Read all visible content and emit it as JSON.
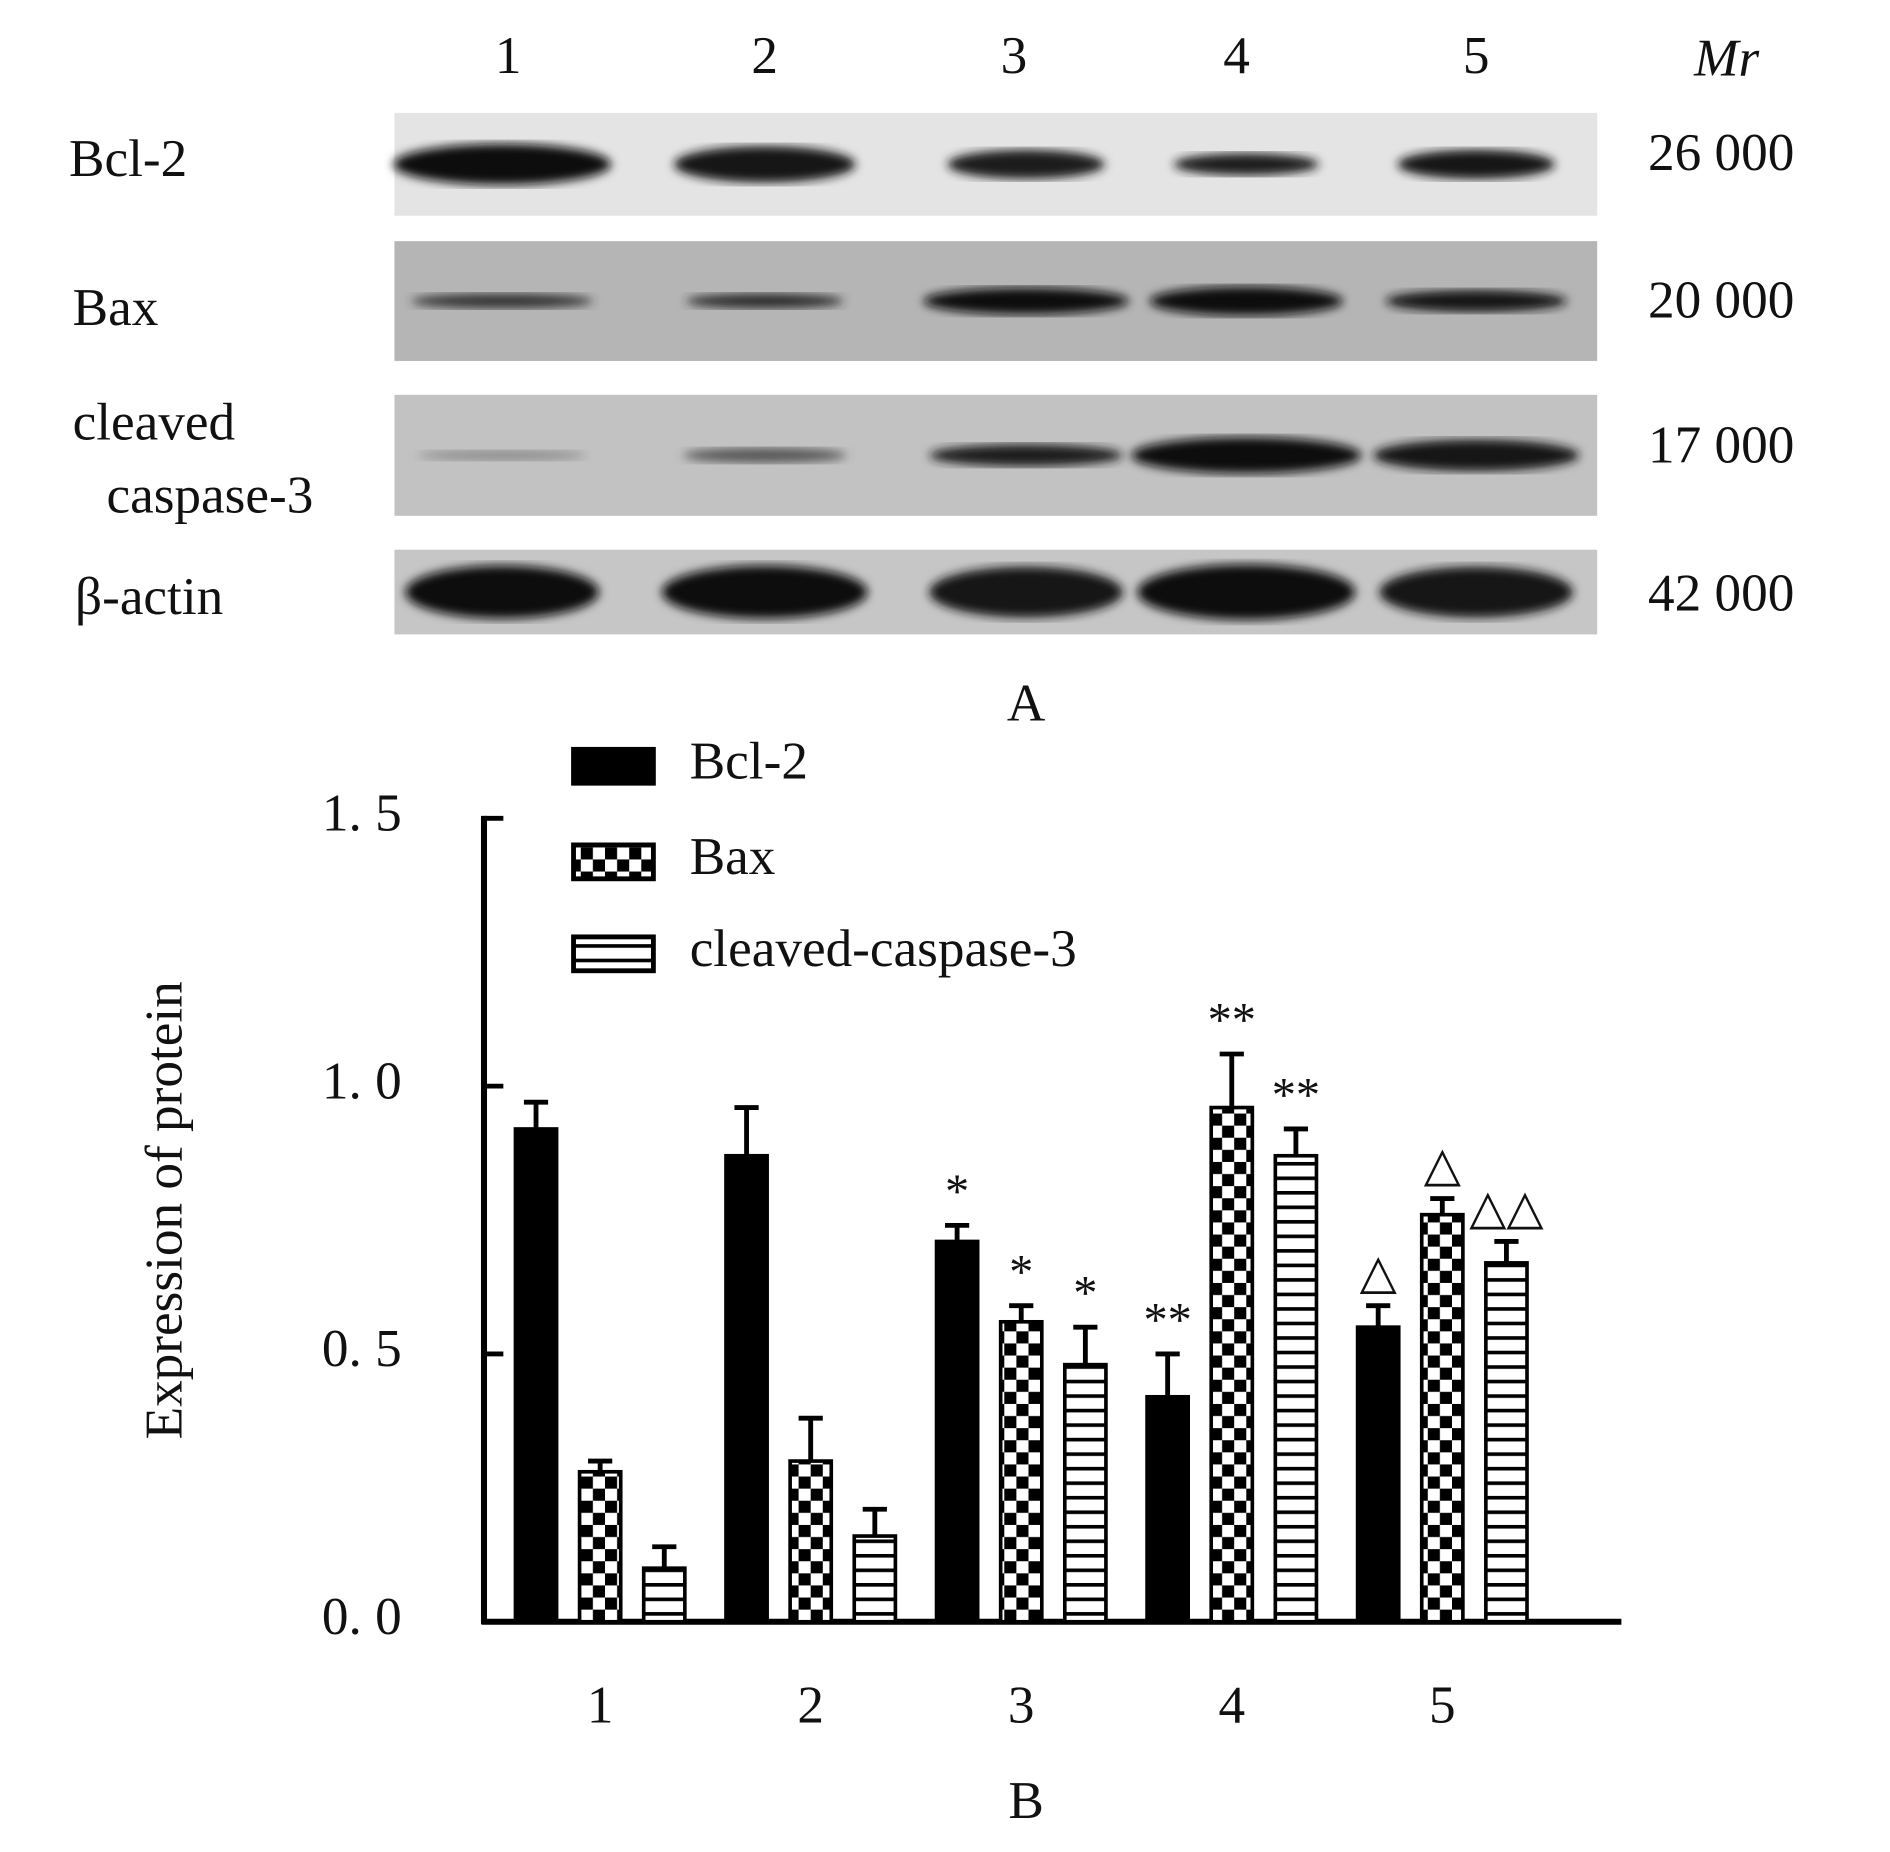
{
  "blot": {
    "lanes": [
      "1",
      "2",
      "3",
      "4",
      "5"
    ],
    "mr_label": "Mr",
    "rows": [
      {
        "protein": [
          "Bcl-2"
        ],
        "mr": "26 000"
      },
      {
        "protein": [
          "Bax"
        ],
        "mr": "20 000"
      },
      {
        "protein": [
          "cleaved",
          "caspase-3"
        ],
        "mr": "17 000"
      },
      {
        "protein": [
          "β-actin"
        ],
        "mr": "42 000"
      }
    ],
    "panel_label": "A"
  },
  "chart_data": {
    "type": "bar",
    "ylabel": "Expression of protein",
    "categories": [
      "1",
      "2",
      "3",
      "4",
      "5"
    ],
    "series": [
      {
        "name": "Bcl-2",
        "color": "#000000",
        "pattern": "solid",
        "values": [
          0.92,
          0.87,
          0.71,
          0.42,
          0.55
        ],
        "errors": [
          0.05,
          0.09,
          0.03,
          0.08,
          0.04
        ],
        "annotations": [
          null,
          null,
          "*",
          "**",
          "△"
        ]
      },
      {
        "name": "Bax",
        "color": "#000000",
        "pattern": "checker",
        "values": [
          0.28,
          0.3,
          0.56,
          0.96,
          0.76
        ],
        "errors": [
          0.02,
          0.08,
          0.03,
          0.1,
          0.03
        ],
        "annotations": [
          null,
          null,
          "*",
          "**",
          "△"
        ]
      },
      {
        "name": "cleaved-caspase-3",
        "color": "#000000",
        "pattern": "hlines",
        "values": [
          0.1,
          0.16,
          0.48,
          0.87,
          0.67
        ],
        "errors": [
          0.04,
          0.05,
          0.07,
          0.05,
          0.04
        ],
        "annotations": [
          null,
          null,
          "*",
          "**",
          "△△"
        ]
      }
    ],
    "ylim": [
      0,
      1.5
    ],
    "yticks": [
      {
        "value": 0,
        "label": "0. 0"
      },
      {
        "value": 0.5,
        "label": "0. 5"
      },
      {
        "value": 1.0,
        "label": "1. 0"
      },
      {
        "value": 1.5,
        "label": "1. 5"
      }
    ],
    "legend": "top-left",
    "panel_label": "B"
  }
}
